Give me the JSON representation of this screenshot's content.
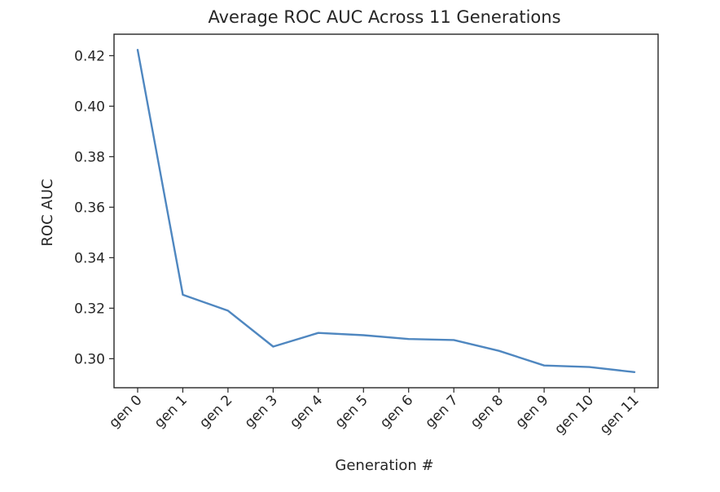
{
  "chart_data": {
    "type": "line",
    "title": "Average ROC AUC Across 11 Generations",
    "xlabel": "Generation #",
    "ylabel": "ROC AUC",
    "categories": [
      "gen 0",
      "gen 1",
      "gen 2",
      "gen 3",
      "gen 4",
      "gen 5",
      "gen 6",
      "gen 7",
      "gen 8",
      "gen 9",
      "gen 10",
      "gen 11"
    ],
    "series": [
      {
        "name": "Average ROC AUC",
        "color": "#4f87c0",
        "values": [
          0.4223,
          0.3253,
          0.319,
          0.3048,
          0.3102,
          0.3093,
          0.3078,
          0.3074,
          0.3031,
          0.2973,
          0.2967,
          0.2947
        ]
      }
    ],
    "ylim": [
      0.2885,
      0.4285
    ],
    "yticks": [
      "0.30",
      "0.32",
      "0.34",
      "0.36",
      "0.38",
      "0.40",
      "0.42"
    ],
    "grid": false,
    "legend": "none"
  }
}
